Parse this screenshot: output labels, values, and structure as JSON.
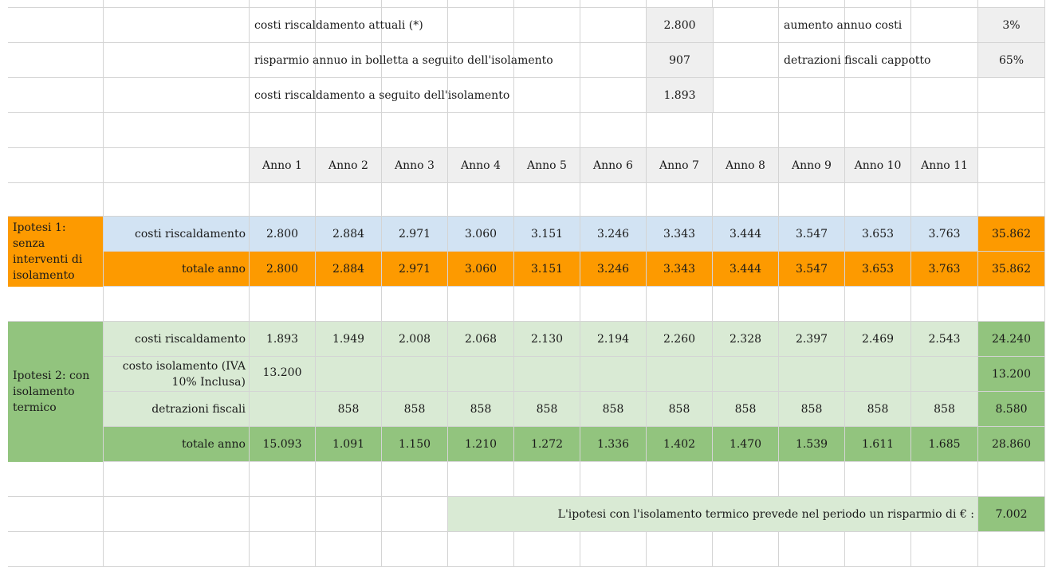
{
  "summary": {
    "current_costs_label": "costi riscaldamento attuali (*)",
    "current_costs_value": "2.800",
    "annual_savings_label": "risparmio annuo in bolletta a seguito dell'isolamento",
    "annual_savings_value": "907",
    "post_costs_label": "costi riscaldamento a seguito dell'isolamento",
    "post_costs_value": "1.893",
    "cost_increase_label": "aumento annuo costi",
    "cost_increase_value": "3%",
    "tax_deduction_label": "detrazioni fiscali cappotto",
    "tax_deduction_value": "65%"
  },
  "years": [
    "Anno 1",
    "Anno 2",
    "Anno 3",
    "Anno 4",
    "Anno 5",
    "Anno 6",
    "Anno 7",
    "Anno 8",
    "Anno 9",
    "Anno 10",
    "Anno 11"
  ],
  "hyp1": {
    "title": "Ipotesi 1: senza interventi di isolamento",
    "rows": [
      {
        "label": "costi riscaldamento",
        "values": [
          "2.800",
          "2.884",
          "2.971",
          "3.060",
          "3.151",
          "3.246",
          "3.343",
          "3.444",
          "3.547",
          "3.653",
          "3.763"
        ],
        "total": "35.862"
      },
      {
        "label": "totale anno",
        "values": [
          "2.800",
          "2.884",
          "2.971",
          "3.060",
          "3.151",
          "3.246",
          "3.343",
          "3.444",
          "3.547",
          "3.653",
          "3.763"
        ],
        "total": "35.862"
      }
    ]
  },
  "hyp2": {
    "title": "Ipotesi 2: con isolamento termico",
    "rows": [
      {
        "label": "costi riscaldamento",
        "values": [
          "1.893",
          "1.949",
          "2.008",
          "2.068",
          "2.130",
          "2.194",
          "2.260",
          "2.328",
          "2.397",
          "2.469",
          "2.543"
        ],
        "total": "24.240"
      },
      {
        "label": "costo isolamento (IVA 10% Inclusa)",
        "values": [
          "13.200",
          "",
          "",
          "",
          "",
          "",
          "",
          "",
          "",
          "",
          ""
        ],
        "total": "13.200"
      },
      {
        "label": "detrazioni fiscali",
        "values": [
          "",
          "858",
          "858",
          "858",
          "858",
          "858",
          "858",
          "858",
          "858",
          "858",
          "858"
        ],
        "total": "8.580"
      },
      {
        "label": "totale anno",
        "values": [
          "15.093",
          "1.091",
          "1.150",
          "1.210",
          "1.272",
          "1.336",
          "1.402",
          "1.470",
          "1.539",
          "1.611",
          "1.685"
        ],
        "total": "28.860"
      }
    ]
  },
  "conclusion": {
    "label": "L'ipotesi con l'isolamento termico prevede nel periodo un risparmio di € :",
    "value": "7.002"
  },
  "colors": {
    "gray": "#efefef",
    "light_blue": "#d2e3f3",
    "orange": "#fd9a00",
    "light_green": "#d9ead4",
    "dark_green": "#92c47e",
    "gridline": "#d4d4d4"
  }
}
